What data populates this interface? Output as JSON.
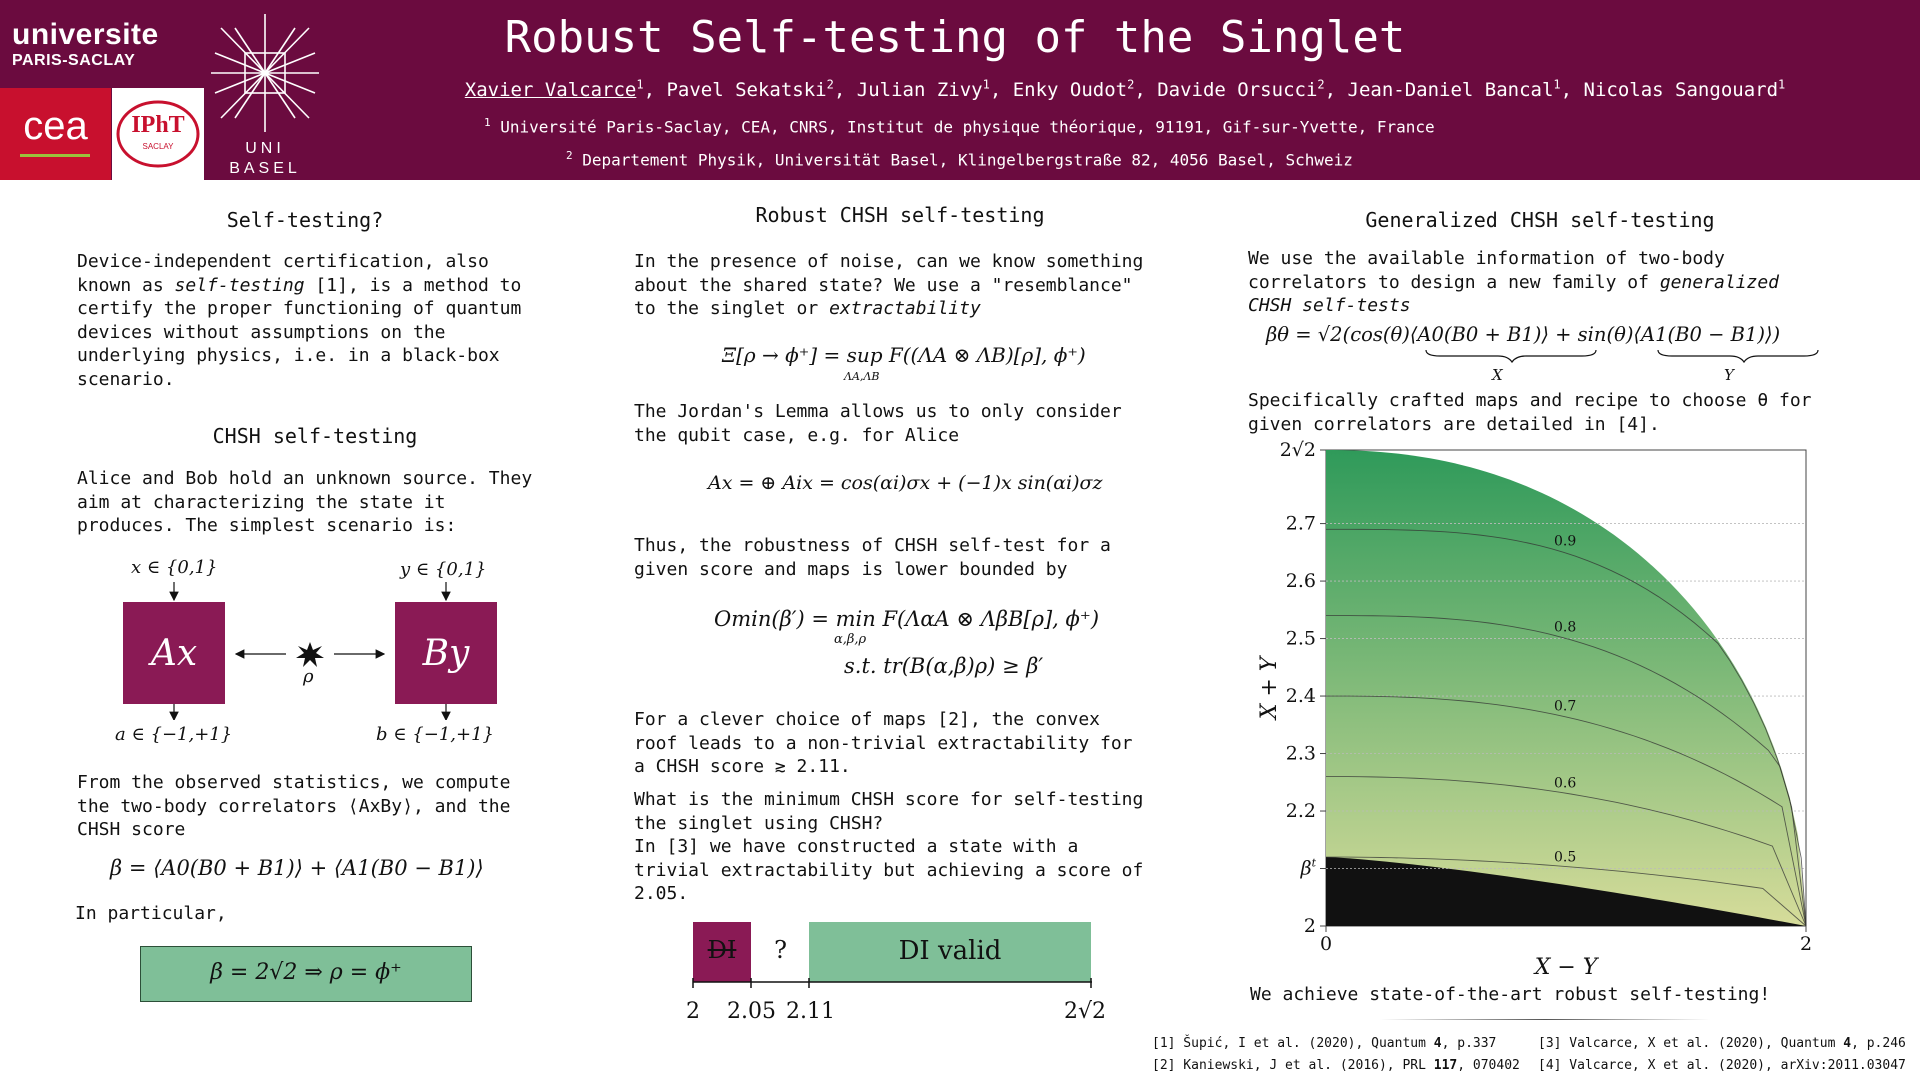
{
  "header": {
    "logo_ups_line1": "universite",
    "logo_ups_line2": "PARIS-SACLAY",
    "logo_cea": "cea",
    "logo_ipht": "IPhT",
    "logo_ipht_sub": "SACLAY",
    "logo_basel_line1": "UNI",
    "logo_basel_line2": "BASEL",
    "title": "Robust Self-testing of the Singlet",
    "authors": [
      {
        "name": "Xavier Valcarce",
        "sup": "1"
      },
      {
        "name": "Pavel Sekatski",
        "sup": "2"
      },
      {
        "name": "Julian Zivy",
        "sup": "1"
      },
      {
        "name": "Enky Oudot",
        "sup": "2"
      },
      {
        "name": "Davide Orsucci",
        "sup": "2"
      },
      {
        "name": "Jean-Daniel Bancal",
        "sup": "1"
      },
      {
        "name": "Nicolas Sangouard",
        "sup": "1"
      }
    ],
    "affil1_sup": "1",
    "affil1": "Université Paris-Saclay, CEA, CNRS, Institut de physique théorique, 91191, Gif-sur-Yvette, France",
    "affil2_sup": "2",
    "affil2": "Departement Physik, Universität Basel, Klingelbergstraße 82, 4056 Basel, Schweiz"
  },
  "col1": {
    "h_selftesting": "Self-testing?",
    "p_selftesting": [
      "Device-independent certification, also",
      "known as self-testing [1], is a method to",
      "certify the proper functioning of quantum",
      "devices without assumptions on the",
      "underlying physics, i.e. in a black-box",
      "scenario."
    ],
    "h_chsh": "CHSH self-testing",
    "p_chsh": [
      "Alice and Bob hold an unknown source. They",
      "aim at characterizing the state it",
      "produces. The simplest scenario is:"
    ],
    "diagram": {
      "x_in": "x ∈ {0,1}",
      "y_in": "y ∈ {0,1}",
      "box_a": "Ax",
      "box_b": "By",
      "source": "ρ",
      "a_out": "a ∈ {−1,+1}",
      "b_out": "b ∈ {−1,+1}"
    },
    "p_stats_1": "From the observed statistics, we compute",
    "p_stats_2": "the two-body correlators ⟨AxBy⟩, and the",
    "p_stats_3": "CHSH score",
    "eq_beta": "β = ⟨A0(B0 + B1)⟩ + ⟨A1(B0 − B1)⟩",
    "p_particular": "In particular,",
    "eq_box": "β = 2√2   ⇒   ρ = ϕ⁺"
  },
  "col2": {
    "h_robust": "Robust CHSH self-testing",
    "p1": [
      "In the presence of noise, can we know something",
      "about the shared state? We use a \"resemblance\"",
      "to the singlet or extractability"
    ],
    "eq_xi": "Ξ[ρ → ϕ⁺] = sup F((ΛA ⊗ ΛB)[ρ], ϕ⁺)",
    "eq_xi_sub": "ΛA,ΛB",
    "p2": [
      "The Jordan's Lemma allows us to only consider",
      "the qubit case, e.g. for Alice"
    ],
    "eq_jordan": "Ax = ⊕ Aix = cos(αi)σx + (−1)x sin(αi)σz",
    "p3": [
      "Thus, the robustness of CHSH self-test for a",
      "given score and maps is lower bounded by"
    ],
    "eq_omin": "Omin(β′) = min F(ΛαA ⊗ ΛβB[ρ], ϕ⁺)",
    "eq_omin_sub": "α,β,ρ",
    "eq_st": "s.t. tr(B(α,β)ρ) ≥ β′",
    "p4": [
      "For a clever choice of maps [2], the convex",
      "roof leads to a non-trivial extractability for",
      "a CHSH score ≳ 2.11."
    ],
    "p5": [
      "What is the minimum CHSH score for self-testing",
      "the singlet using CHSH?",
      "In [3] we have constructed a state with a",
      "trivial extractability but achieving a score of",
      "2.05."
    ],
    "bar": {
      "seg_di": "DI",
      "seg_q": "?",
      "seg_valid": "DI valid",
      "ticks": [
        "2",
        "2.05",
        "2.11",
        "2√2"
      ]
    }
  },
  "col3": {
    "h_gen": "Generalized CHSH self-testing",
    "p1": [
      "We use the available information of two-body",
      "correlators to design a new family of generalized",
      "CHSH self-tests"
    ],
    "eq_btheta": "βθ = √2(cos(θ)⟨A0(B0 + B1)⟩ + sin(θ)⟨A1(B0 − B1)⟩)",
    "brace_x": "X",
    "brace_y": "Y",
    "p2": [
      "Specifically crafted maps and recipe to choose θ for",
      "given correlators are detailed in [4]."
    ],
    "p_final": "We achieve state-of-the-art robust self-testing!"
  },
  "chart_data": {
    "type": "contour",
    "xlabel": "X − Y",
    "ylabel": "X + Y",
    "xlim": [
      0,
      2
    ],
    "ylim": [
      2,
      2.828
    ],
    "x_ticks": [
      "0",
      "2"
    ],
    "y_ticks": [
      "2",
      "β^t_{π/4}",
      "2.2",
      "2.3",
      "2.4",
      "2.5",
      "2.6",
      "2.7",
      "2√2"
    ],
    "y_tick_values": [
      2,
      2.1,
      2.2,
      2.3,
      2.4,
      2.5,
      2.6,
      2.7,
      2.828
    ],
    "contour_labels": [
      "0.9",
      "0.8",
      "0.7",
      "0.6",
      "0.5"
    ],
    "contour_levels": [
      0.9,
      0.8,
      0.7,
      0.6,
      0.5
    ],
    "contour_y_at_x0": [
      2.69,
      2.54,
      2.4,
      2.26,
      2.12
    ],
    "colors": {
      "high": "#2f9a5a",
      "low": "#d6dc9a",
      "zero_region": "#111111"
    }
  },
  "refs": [
    {
      "pre": "[1] Šupić, I et al. (2020), Quantum ",
      "bold": "4",
      "post": ", p.337"
    },
    {
      "pre": "[3] Valcarce, X et al. (2020), Quantum ",
      "bold": "4",
      "post": ", p.246"
    },
    {
      "pre": "[2] Kaniewski, J et al. (2016), PRL ",
      "bold": "117",
      "post": ", 070402"
    },
    {
      "pre": "[4] Valcarce, X et al. (2020), arXiv:2011.03047",
      "bold": "",
      "post": ""
    }
  ]
}
